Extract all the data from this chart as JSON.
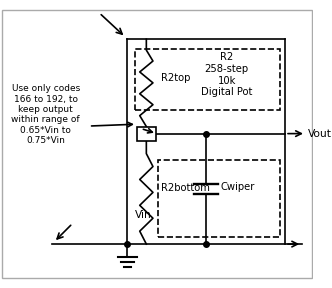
{
  "bg_color": "#ffffff",
  "line_color": "#000000",
  "text_color": "#000000",
  "annotation_text": "Use only codes\n166 to 192, to\nkeep output\nwithin range of\n0.65*Vin to\n0.75*Vin",
  "label_vin": "Vin",
  "label_vout": "Vout",
  "label_r2top": "R2top",
  "label_r2bottom": "R2bottom",
  "label_cwiper": "Cwiper",
  "label_r2box": "R2\n258-step\n10k\nDigital Pot",
  "figsize": [
    3.32,
    2.88
  ],
  "dpi": 100
}
